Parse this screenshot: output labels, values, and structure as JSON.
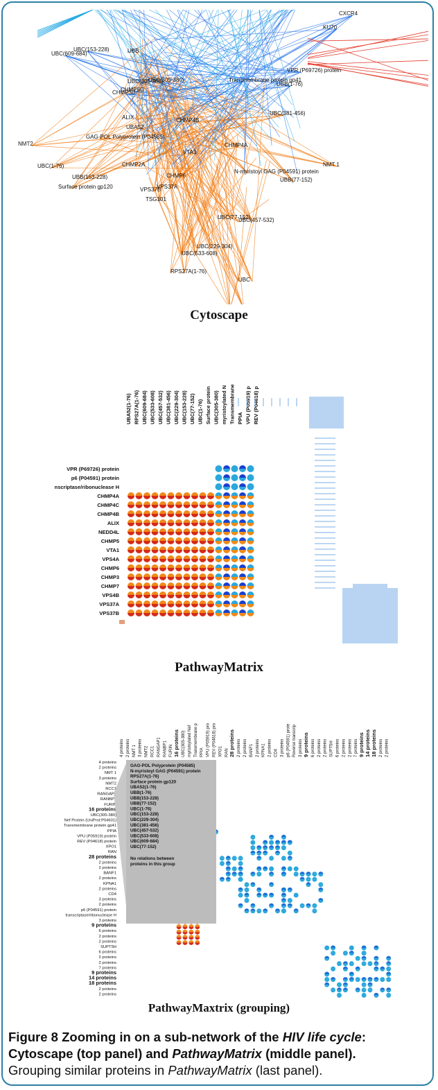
{
  "panels": {
    "cytoscape": {
      "title": "Cytoscape",
      "nodes": [
        {
          "label": "UBC(153-228)"
        },
        {
          "label": "UBC(609-684)"
        },
        {
          "label": "UBB"
        },
        {
          "label": "CHMP5C"
        },
        {
          "label": "UBC(305-380)"
        },
        {
          "label": "CHMP3B"
        },
        {
          "label": "ALIX"
        },
        {
          "label": "UBA52"
        },
        {
          "label": "NMT2"
        },
        {
          "label": "GAG-POL Polyprotein (P04585)"
        },
        {
          "label": "UBC(1-76)"
        },
        {
          "label": "CHMP2A"
        },
        {
          "label": "UBB(153-228)"
        },
        {
          "label": "Surface protein gp120"
        },
        {
          "label": "VPS37B"
        },
        {
          "label": "VPS37A"
        },
        {
          "label": "TSG101"
        },
        {
          "label": "CHMP4A"
        },
        {
          "label": "N-myristoyl GAG (P04591) protein"
        },
        {
          "label": "UBB(77-152)"
        },
        {
          "label": "CHMP6"
        },
        {
          "label": "UBC(77-152)"
        },
        {
          "label": "UBC(457-532)"
        },
        {
          "label": "UBC(533-608)"
        },
        {
          "label": "UBC(229-304)"
        },
        {
          "label": "RPS27A(1-76)"
        },
        {
          "label": "UBC"
        },
        {
          "label": "N-myristoyl GAG"
        },
        {
          "label": "NMT 1"
        },
        {
          "label": "CXCR4"
        },
        {
          "label": "KU70"
        },
        {
          "label": "VPR (P69726) protein"
        },
        {
          "label": "UBB(1-76)"
        },
        {
          "label": "UBC(381-456)"
        },
        {
          "label": "Transmembrane protein gp41"
        },
        {
          "label": "CHMP4B"
        },
        {
          "label": "VTA1"
        },
        {
          "label": "UBC(305-380)"
        }
      ]
    },
    "matrix": {
      "title": "PathwayMatrix",
      "columns": [
        "UBA52(1-76)",
        "RPS27A(1-76)",
        "UBC(609-684)",
        "UBC(533-608)",
        "UBC(457-532)",
        "UBC(381-456)",
        "UBC(229-304)",
        "UBC(153-228)",
        "UBC(77-152)",
        "UBC(1-76)",
        "Surface protein",
        "UBC(305-380)",
        "myristoylated N",
        "Transmembrane",
        "PPIA",
        "VPU (P05919) p",
        "REV (P04618) p"
      ],
      "rows": [
        "VPR (P69726) protein",
        "p6 (P04591) protein",
        "nscriptase/ribonuclease H",
        "CHMP4A",
        "CHMP4C",
        "CHMP4B",
        "ALIX",
        "NEDD4L",
        "CHMP5",
        "VTA1",
        "VPS4A",
        "CHMP6",
        "CHMP3",
        "CHMP7",
        "VPS4B",
        "VPS37A",
        "VPS37B"
      ]
    },
    "grouping": {
      "title": "PathwayMaxtrix (grouping)",
      "columns": [
        "4 proteins",
        "2 proteins",
        "NMT 1",
        "3 proteins",
        "NMT2",
        "RCC1",
        "RANGAP1",
        "RANBP1",
        "FURIN",
        "16 proteins",
        "UBC(305-380)",
        "myristoylated Nef",
        "Transmembrane p",
        "PPIA",
        "VPU (P05919) pro",
        "REV (P04618) pro",
        "XPO1",
        "RAN",
        "28 proteins",
        "2 proteins",
        "2 proteins",
        "BANF1",
        "2 proteins",
        "KPNA1",
        "2 proteins",
        "CD4",
        "3 proteins",
        "p6 (P04591) prote",
        "Reverse transcrip",
        "3 proteins",
        "9 proteins",
        "6 proteins",
        "2 proteins",
        "2 proteins",
        "SUPT5H",
        "6 proteins",
        "2 proteins",
        "2 proteins",
        "7 proteins",
        "9 proteins",
        "14 proteins",
        "18 proteins",
        "2 proteins",
        "2 proteins"
      ],
      "rows": [
        "4 proteins",
        "2 proteins",
        "NMT 1",
        "3 proteins",
        "NMT2",
        "RCC1",
        "RANGAP1",
        "RANBP1",
        "FURIN",
        "16 proteins",
        "UBC(305-380)",
        "Nef Protein (UniProt:P04601)",
        "Transmembrane protein gp41",
        "PPIA",
        "VPU (P05919) protein",
        "REV (P04618) protein",
        "XPO1",
        "RAN",
        "28 proteins",
        "2 proteins",
        "2 proteins",
        "BANF1",
        "2 proteins",
        "KPNA1",
        "2 proteins",
        "CD4",
        "3 proteins",
        "2 proteins",
        "p6 (P04591) protein",
        "transcriptase/ribonuclease H",
        "3 proteins",
        "9 proteins",
        "6 proteins",
        "2 proteins",
        "2 proteins",
        "SUPT5H",
        "6 proteins",
        "2 proteins",
        "2 proteins",
        "7 proteins",
        "9 proteins",
        "14 proteins",
        "18 proteins",
        "2 proteins",
        "2 proteins"
      ],
      "tooltip": {
        "items": [
          "GAG-POL Polyprotein (P04585)",
          "N-myristoyl GAG (P04591) protein",
          "RPS27A(1-76)",
          "Surface protein gp120",
          "UBA52(1-76)",
          "UBB(1-76)",
          "UBB(153-228)",
          "UBB(77-152)",
          "UBC(1-76)",
          "UBC(153-228)",
          "UBC(229-304)",
          "UBC(381-456)",
          "UBC(457-532)",
          "UBC(533-608)",
          "UBC(609-684)",
          "UBC(77-152)"
        ],
        "note": "No relations between proteins in this group"
      }
    }
  },
  "caption": {
    "fig": "Figure 8",
    "t1": "Zooming in on a sub-network of the ",
    "t2": "HIV life cycle",
    "t3": ":",
    "t4": "Cytoscape (top panel) and ",
    "t5": "PathwayMatrix",
    "t6": " (middle panel).",
    "t7": "Grouping similar proteins in ",
    "t8": "PathwayMatrix",
    "t9": " (last panel)."
  },
  "colors": {
    "orange_edge": "#f07a10",
    "blue_edge": "#1e6fe8",
    "cyan_edge": "#25a9e6",
    "red_edge": "#e23b2a",
    "frame": "#2c7fa3"
  }
}
